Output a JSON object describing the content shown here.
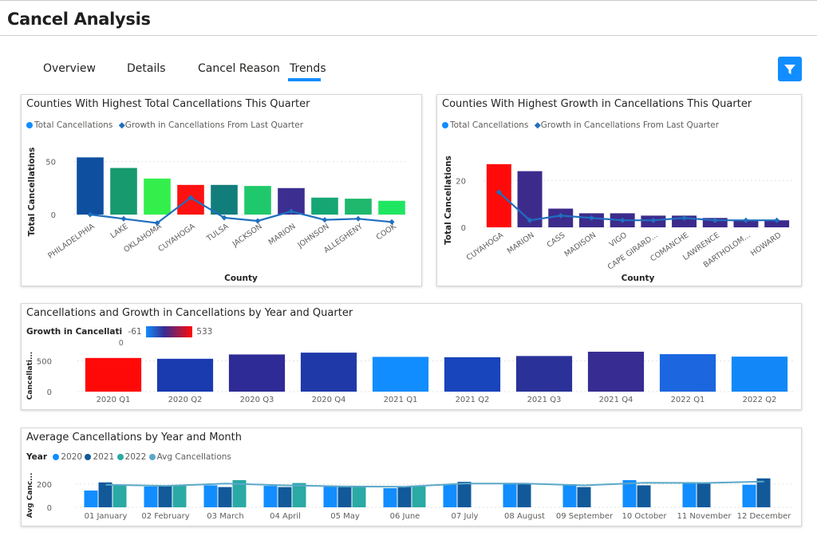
{
  "header": {
    "title": "Cancel Analysis"
  },
  "tabs": [
    {
      "label": "Overview",
      "active": false
    },
    {
      "label": "Details",
      "active": false
    },
    {
      "label": "Cancel Reason",
      "active": false
    },
    {
      "label": "Trends",
      "active": true
    }
  ],
  "filter_icon": "filter-icon",
  "colors": {
    "accent": "#118dff",
    "line": "#1f6fbf",
    "grid": "#e6e6e6"
  },
  "chart_data": [
    {
      "type": "bar",
      "title": "Counties With Highest Total Cancellations This Quarter",
      "legend": [
        "Total Cancellations",
        "Growth in Cancellations From Last Quarter"
      ],
      "xlabel": "County",
      "ylabel": "Total Cancellations",
      "yticks": [
        0,
        50
      ],
      "ylim": [
        -8,
        58
      ],
      "categories": [
        "PHILADELPHIA",
        "LAKE",
        "OKLAHOMA",
        "CUYAHOGA",
        "TULSA",
        "JACKSON",
        "MARION",
        "JOHNSON",
        "ALLEGHENY",
        "COOK"
      ],
      "values": [
        54,
        44,
        34,
        28,
        28,
        27,
        25,
        16,
        15,
        13
      ],
      "colors": [
        "#0f4fa0",
        "#169a6e",
        "#33ef4c",
        "#ff1111",
        "#127e7b",
        "#1fc96b",
        "#3b2e90",
        "#16a674",
        "#1fb86c",
        "#1fe660"
      ],
      "line_values": [
        0,
        -4,
        -8,
        16,
        -3,
        -6,
        3,
        -5,
        -4,
        -7
      ]
    },
    {
      "type": "bar",
      "title": "Counties With Highest Growth in Cancellations This Quarter",
      "legend": [
        "Total Cancellations",
        "Growth in Cancellations From Last Quarter"
      ],
      "xlabel": "County",
      "ylabel": "Total Cancellations",
      "yticks": [
        0,
        20
      ],
      "ylim": [
        0,
        30
      ],
      "categories": [
        "CUYAHOGA",
        "MARION",
        "CASS",
        "MADISON",
        "VIGO",
        "CAPE GIRARD...",
        "COMANCHE",
        "LAWRENCE",
        "BARTHOLOM...",
        "HOWARD"
      ],
      "values": [
        27,
        24,
        8,
        6,
        6,
        5,
        5,
        4,
        3,
        3
      ],
      "colors": [
        "#ff0a0a",
        "#3d2b8c",
        "#3d2b8c",
        "#3d2b8c",
        "#3d2b8c",
        "#3d2b8c",
        "#3d2b8c",
        "#3d2b8c",
        "#3d2b8c",
        "#3d2b8c"
      ],
      "line_values": [
        15,
        3,
        5,
        4,
        3,
        3,
        4,
        3,
        3,
        3
      ]
    },
    {
      "type": "bar",
      "title": "Cancellations and Growth in Cancellations by Year and Quarter",
      "legend_title": "Growth in Cancellati",
      "gradient_min": "-61",
      "gradient_mid": "0",
      "gradient_max": "533",
      "ylabel": "Cancellati...",
      "yticks": [
        0,
        500
      ],
      "ylim": [
        0,
        700
      ],
      "categories": [
        "2020 Q1",
        "2020 Q2",
        "2020 Q3",
        "2020 Q4",
        "2021 Q1",
        "2021 Q2",
        "2021 Q3",
        "2021 Q4",
        "2022 Q1",
        "2022 Q2"
      ],
      "values": [
        548,
        535,
        605,
        635,
        566,
        560,
        580,
        650,
        610,
        570
      ],
      "colors": [
        "#ff0808",
        "#1a3ab0",
        "#2e2a96",
        "#1f3aa8",
        "#118dff",
        "#1844bc",
        "#2a3299",
        "#372c92",
        "#1c66e0",
        "#1288f8"
      ]
    },
    {
      "type": "bar",
      "title": "Average Cancellations by Year and Month",
      "legend_title": "Year",
      "legend": [
        "2020",
        "2021",
        "2022",
        "Avg Cancellations"
      ],
      "ylabel": "Avg Canc...",
      "yticks": [
        0,
        200
      ],
      "ylim": [
        0,
        280
      ],
      "categories": [
        "01 January",
        "02 February",
        "03 March",
        "04 April",
        "05 May",
        "06 June",
        "07 July",
        "08 August",
        "09 September",
        "10 October",
        "11 November",
        "12 December"
      ],
      "series": [
        {
          "name": "2020",
          "color": "#118dff",
          "values": [
            145,
            180,
            190,
            185,
            180,
            165,
            195,
            210,
            200,
            235,
            215,
            195
          ]
        },
        {
          "name": "2021",
          "color": "#12599a",
          "values": [
            215,
            185,
            175,
            175,
            175,
            180,
            220,
            200,
            175,
            190,
            205,
            250
          ]
        },
        {
          "name": "2022",
          "color": "#2aa9a5",
          "values": [
            190,
            190,
            235,
            210,
            180,
            180,
            null,
            null,
            null,
            null,
            null,
            null
          ]
        }
      ],
      "avg_line": {
        "name": "Avg Cancellations",
        "color": "#5aa8c8",
        "values": [
          195,
          185,
          205,
          190,
          180,
          178,
          205,
          205,
          190,
          212,
          210,
          222
        ]
      }
    }
  ]
}
